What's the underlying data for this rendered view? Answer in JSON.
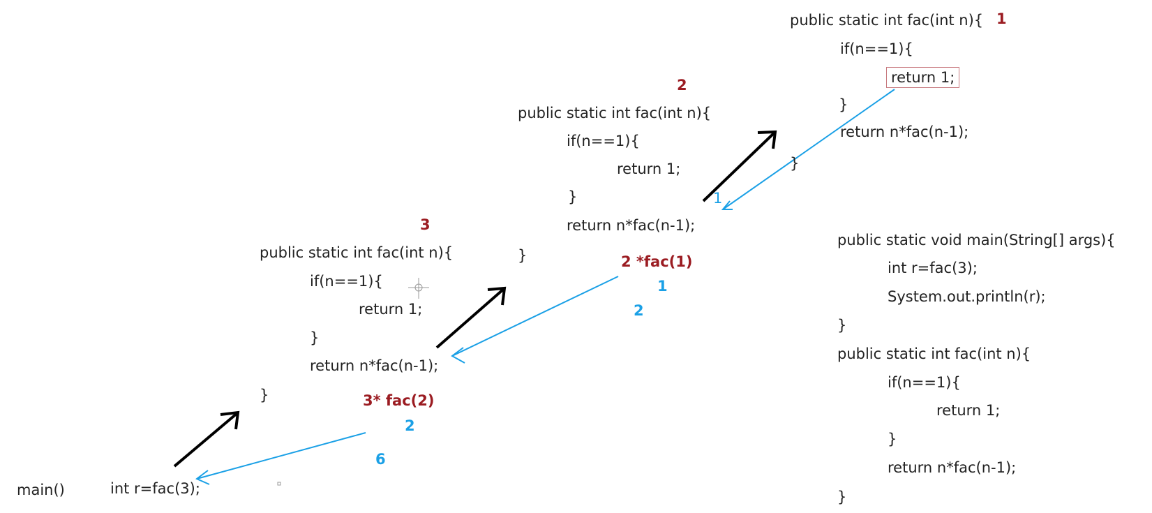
{
  "code_frames": [
    {
      "lines": [
        "public static int fac(int n){",
        "if(n==1){",
        "return 1;",
        "}",
        "return n*fac(n-1);",
        "}"
      ],
      "order_label": "1"
    },
    {
      "lines": [
        "public static int fac(int n){",
        "if(n==1){",
        "return 1;",
        "}",
        "return n*fac(n-1);",
        "}"
      ],
      "order_label": "2",
      "pending_expr": "2 *fac(1)",
      "returned_value": "1",
      "result_value": "2"
    },
    {
      "lines": [
        "public static int fac(int n){",
        "if(n==1){",
        "return 1;",
        "}",
        "return n*fac(n-1);",
        "}"
      ],
      "order_label": "3",
      "pending_expr": "3* fac(2)",
      "returned_value": "2",
      "result_value": "6"
    }
  ],
  "main_call": {
    "label": "main()",
    "code": "int r=fac(3);"
  },
  "reference_code": [
    "public static void main(String[] args){",
    "int r=fac(3);",
    "System.out.println(r);",
    "}",
    "public static int fac(int n){",
    "if(n==1){",
    "return 1;",
    "}",
    "return n*fac(n-1);",
    "}"
  ],
  "return_marker": "1",
  "colors": {
    "label_red": "#9b1c22",
    "value_blue": "#1aa0e6",
    "call_arrow": "#000000",
    "return_arrow": "#1aa0e6",
    "highlight_box": "#c87a80"
  }
}
